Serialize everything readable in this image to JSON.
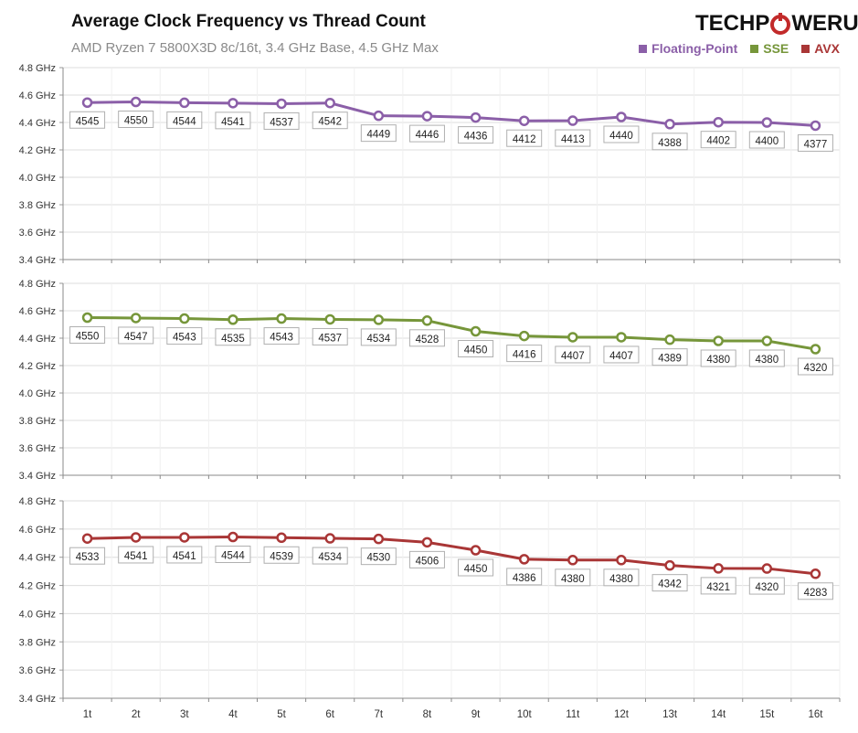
{
  "header": {
    "title": "Average Clock Frequency vs Thread Count",
    "subtitle": "AMD Ryzen 7 5800X3D 8c/16t, 3.4 GHz Base, 4.5 GHz Max",
    "logo": "TECHPOWERUP"
  },
  "legend": [
    {
      "name": "Floating-Point",
      "color": "#8b5fa8"
    },
    {
      "name": "SSE",
      "color": "#76963a"
    },
    {
      "name": "AVX",
      "color": "#a93636"
    }
  ],
  "chart_data": {
    "type": "line",
    "x": [
      "1t",
      "2t",
      "3t",
      "4t",
      "5t",
      "6t",
      "7t",
      "8t",
      "9t",
      "10t",
      "11t",
      "12t",
      "13t",
      "14t",
      "15t",
      "16t"
    ],
    "ylim": [
      3.4,
      4.8
    ],
    "yticks": [
      "4.8 GHz",
      "4.6 GHz",
      "4.4 GHz",
      "4.2 GHz",
      "4.0 GHz",
      "3.8 GHz",
      "3.6 GHz",
      "3.4 GHz"
    ],
    "grid": true,
    "legend_position": "top-right",
    "series": [
      {
        "name": "Floating-Point",
        "color": "#8b5fa8",
        "values": [
          4545,
          4550,
          4544,
          4541,
          4537,
          4542,
          4449,
          4446,
          4436,
          4412,
          4413,
          4440,
          4388,
          4402,
          4400,
          4377
        ]
      },
      {
        "name": "SSE",
        "color": "#76963a",
        "values": [
          4550,
          4547,
          4543,
          4535,
          4543,
          4537,
          4534,
          4528,
          4450,
          4416,
          4407,
          4407,
          4389,
          4380,
          4380,
          4320
        ]
      },
      {
        "name": "AVX",
        "color": "#a93636",
        "values": [
          4533,
          4541,
          4541,
          4544,
          4539,
          4534,
          4530,
          4506,
          4450,
          4386,
          4380,
          4380,
          4342,
          4321,
          4320,
          4283
        ]
      }
    ]
  }
}
